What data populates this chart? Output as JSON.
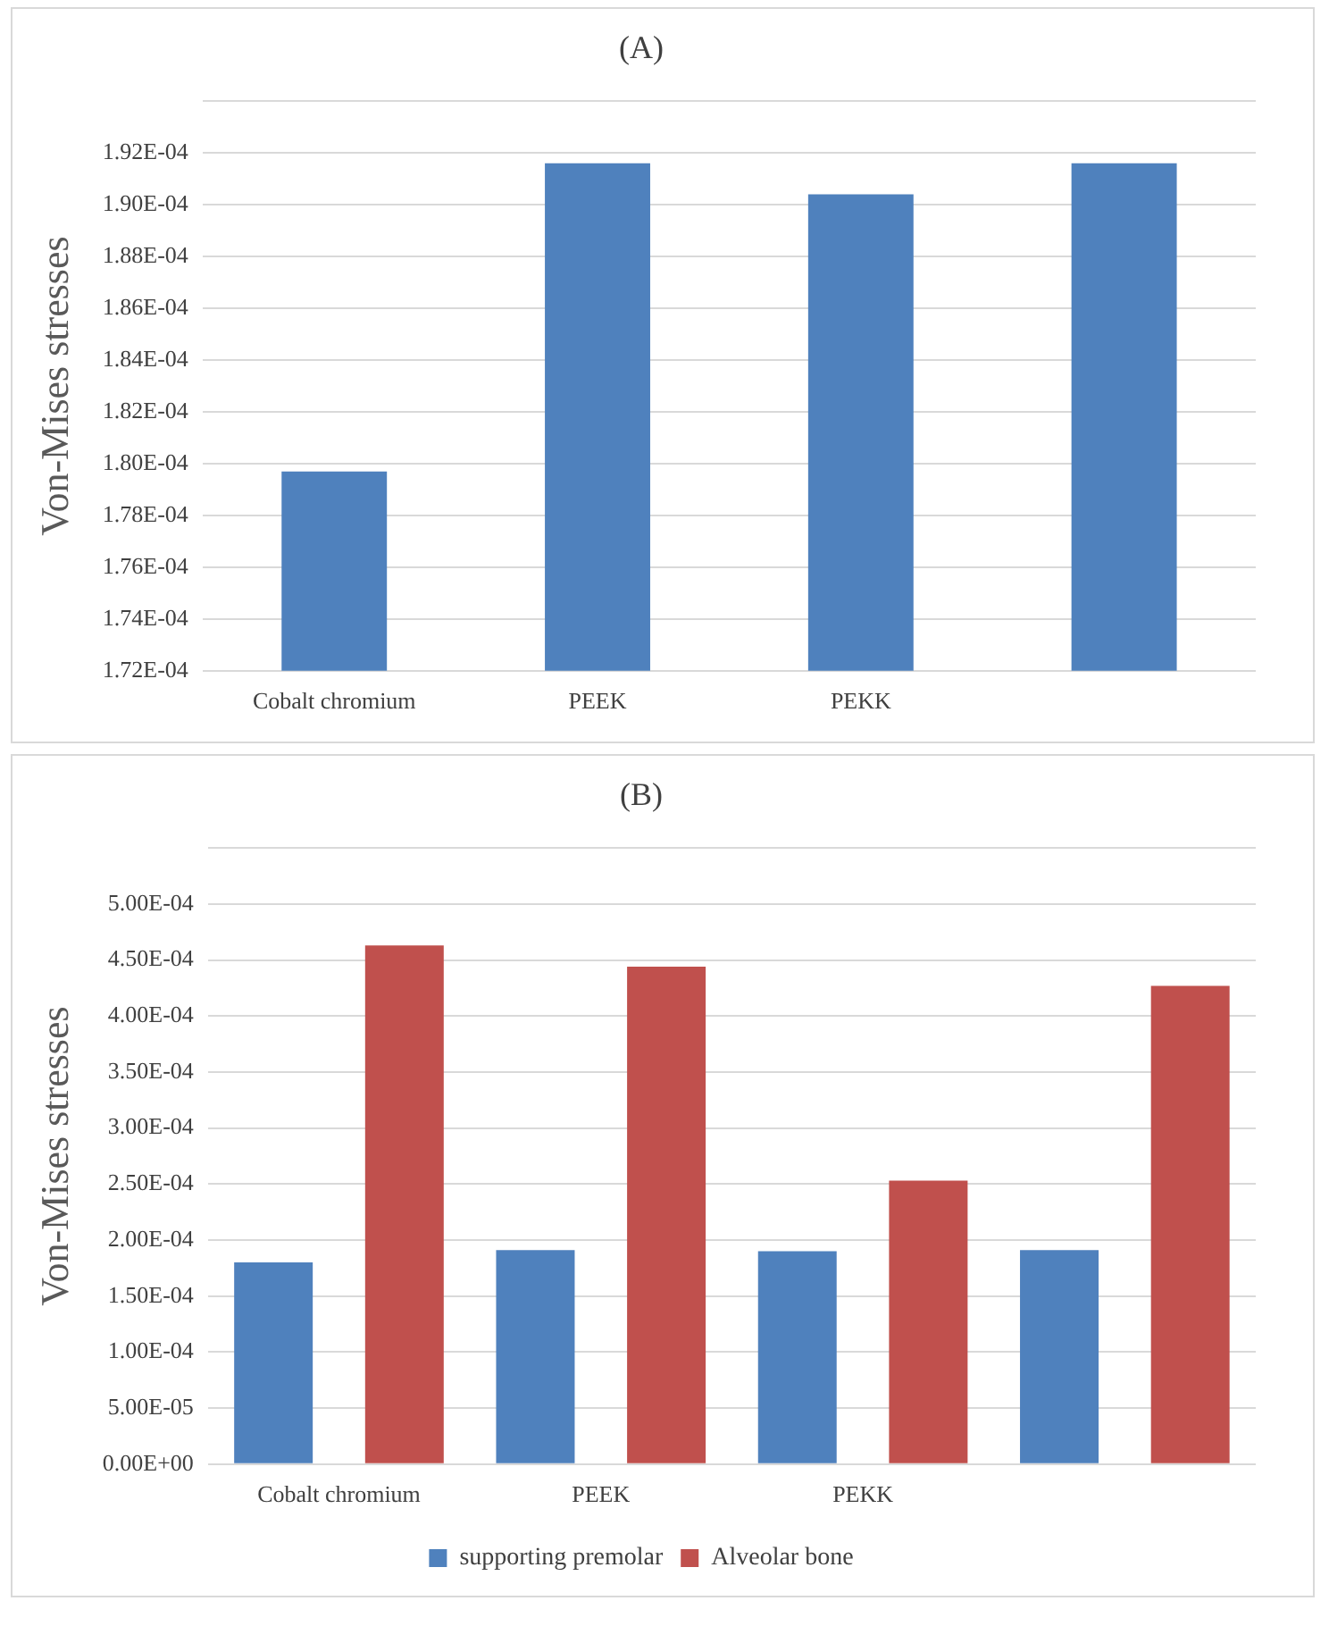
{
  "chart_data": [
    {
      "type": "bar",
      "title": "(A)",
      "ylabel": "Von-Mises stresses",
      "categories": [
        "Cobalt chromium",
        "PEEK",
        "PEKK",
        null
      ],
      "values": [
        0.0001797,
        0.0001916,
        0.0001904,
        0.0001916
      ],
      "color": "#4f81bd",
      "ylim": [
        0.000172,
        0.000194
      ],
      "yticks": [
        {
          "value": 0.000172,
          "label": "1.72E-04"
        },
        {
          "value": 0.000174,
          "label": "1.74E-04"
        },
        {
          "value": 0.000176,
          "label": "1.76E-04"
        },
        {
          "value": 0.000178,
          "label": "1.78E-04"
        },
        {
          "value": 0.00018,
          "label": "1.80E-04"
        },
        {
          "value": 0.000182,
          "label": "1.82E-04"
        },
        {
          "value": 0.000184,
          "label": "1.84E-04"
        },
        {
          "value": 0.000186,
          "label": "1.86E-04"
        },
        {
          "value": 0.000188,
          "label": "1.88E-04"
        },
        {
          "value": 0.00019,
          "label": "1.90E-04"
        },
        {
          "value": 0.000192,
          "label": "1.92E-04"
        },
        {
          "value": 0.000194,
          "label": null
        }
      ],
      "grid": "y",
      "legend": false
    },
    {
      "type": "bar",
      "title": "(B)",
      "ylabel": "Von-Mises stresses",
      "categories": [
        "Cobalt chromium",
        "PEEK",
        "PEKK",
        null
      ],
      "series": [
        {
          "name": "supporting premolar",
          "color": "#4f81bd",
          "values": [
            0.00018,
            0.000191,
            0.00019,
            0.000191
          ]
        },
        {
          "name": "Alveolar bone",
          "color": "#c0504d",
          "values": [
            0.000463,
            0.000444,
            0.000253,
            0.000427
          ]
        }
      ],
      "ylim": [
        0,
        0.00055
      ],
      "yticks": [
        {
          "value": 0,
          "label": "0.00E+00"
        },
        {
          "value": 5e-05,
          "label": "5.00E-05"
        },
        {
          "value": 0.0001,
          "label": "1.00E-04"
        },
        {
          "value": 0.00015,
          "label": "1.50E-04"
        },
        {
          "value": 0.0002,
          "label": "2.00E-04"
        },
        {
          "value": 0.00025,
          "label": "2.50E-04"
        },
        {
          "value": 0.0003,
          "label": "3.00E-04"
        },
        {
          "value": 0.00035,
          "label": "3.50E-04"
        },
        {
          "value": 0.0004,
          "label": "4.00E-04"
        },
        {
          "value": 0.00045,
          "label": "4.50E-04"
        },
        {
          "value": 0.0005,
          "label": "5.00E-04"
        },
        {
          "value": 0.00055,
          "label": null
        }
      ],
      "grid": "y",
      "legend": "bottom"
    }
  ]
}
